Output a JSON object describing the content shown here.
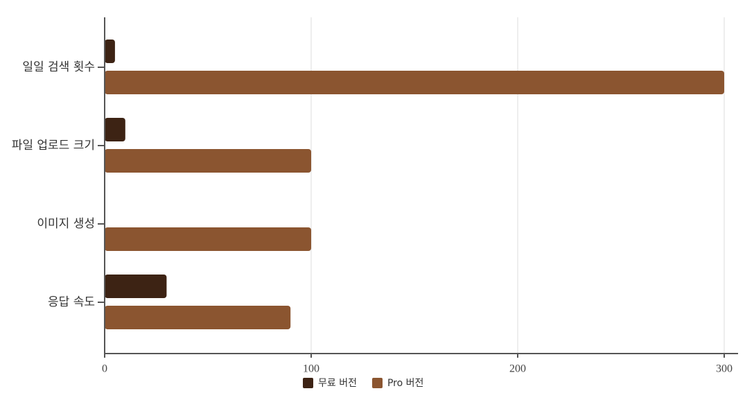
{
  "chart_data": {
    "type": "bar",
    "orientation": "horizontal",
    "categories": [
      "일일 검색 횟수",
      "파일 업로드 크기",
      "이미지 생성",
      "응답 속도"
    ],
    "series": [
      {
        "name": "무료 버전",
        "color": "#3d2314",
        "values": [
          5,
          10,
          0,
          30
        ]
      },
      {
        "name": "Pro 버전",
        "color": "#8b5530",
        "values": [
          300,
          100,
          100,
          90
        ]
      }
    ],
    "xlim": [
      0,
      300
    ],
    "xticks": [
      0,
      100,
      200,
      300
    ],
    "grid": true,
    "legend": "bottom"
  }
}
